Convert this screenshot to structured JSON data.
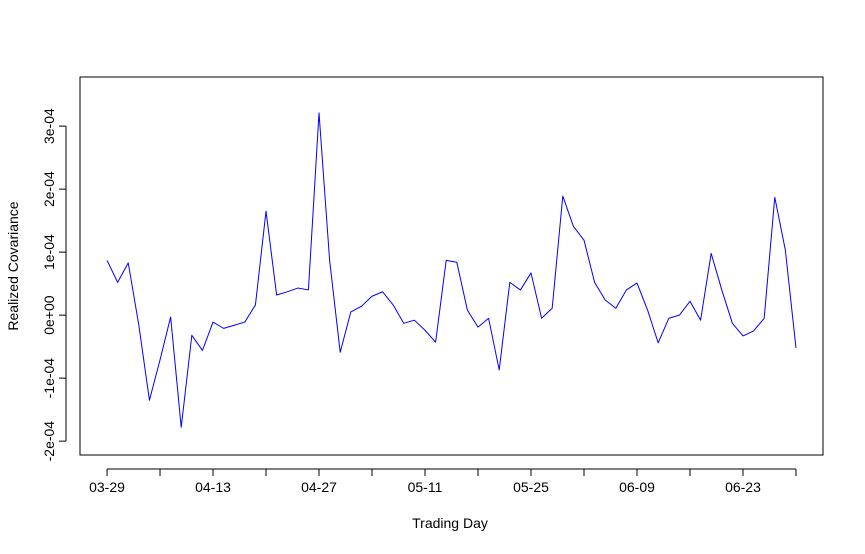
{
  "chart_data": {
    "type": "line",
    "x_label": "Trading Day",
    "y_label": "Realized Covariance",
    "x": [
      0,
      1,
      2,
      3,
      4,
      5,
      6,
      7,
      8,
      9,
      10,
      11,
      12,
      13,
      14,
      15,
      16,
      17,
      18,
      19,
      20,
      21,
      22,
      23,
      24,
      25,
      26,
      27,
      28,
      29,
      30,
      31,
      32,
      33,
      34,
      35,
      36,
      37,
      38,
      39,
      40,
      41,
      42,
      43,
      44,
      45,
      46,
      47,
      48,
      49,
      50,
      51,
      52,
      53,
      54,
      55,
      56,
      57,
      58,
      59,
      60,
      61,
      62,
      63,
      64,
      65
    ],
    "series": [
      {
        "color": "#0000ff",
        "values": [
          8.7e-05,
          5.2e-05,
          8.3e-05,
          -1.6e-05,
          -0.000135,
          -7.1e-05,
          -3e-06,
          -0.000178,
          -3.2e-05,
          -5.6e-05,
          -1.1e-05,
          -2.1e-05,
          -1.6e-05,
          -1.1e-05,
          1.6e-05,
          0.000165,
          3.2e-05,
          3.7e-05,
          4.3e-05,
          4e-05,
          0.000321,
          8.7e-05,
          -5.9e-05,
          5e-06,
          1.4e-05,
          3e-05,
          3.7e-05,
          1.6e-05,
          -1.3e-05,
          -8e-06,
          -2.4e-05,
          -4.3e-05,
          8.7e-05,
          8.4e-05,
          8e-06,
          -1.9e-05,
          -5e-06,
          -8.7e-05,
          5.2e-05,
          4e-05,
          6.7e-05,
          -5e-06,
          1.1e-05,
          0.000189,
          0.000141,
          0.000119,
          5.2e-05,
          2.4e-05,
          1.1e-05,
          4e-05,
          5.1e-05,
          8e-06,
          -4.4e-05,
          -5e-06,
          0,
          2.2e-05,
          -8e-06,
          9.8e-05,
          4e-05,
          -1.3e-05,
          -3.3e-05,
          -2.5e-05,
          -5e-06,
          0.000187,
          0.000103,
          -5.2e-05
        ]
      }
    ],
    "xlim": [
      -2.55,
      67.55
    ],
    "ylim": [
      -0.000222,
      0.000378
    ],
    "xticks": [
      {
        "value": 0,
        "label": "03-29"
      },
      {
        "value": 10,
        "label": "04-13"
      },
      {
        "value": 20,
        "label": "04-27"
      },
      {
        "value": 30,
        "label": "05-11"
      },
      {
        "value": 40,
        "label": "05-25"
      },
      {
        "value": 50,
        "label": "06-09"
      },
      {
        "value": 60,
        "label": "06-23"
      }
    ],
    "xminor_ticks": [
      5,
      15,
      25,
      35,
      45,
      55,
      65
    ],
    "yticks": [
      {
        "value": -0.0002,
        "label": "-2e-04"
      },
      {
        "value": -0.0001,
        "label": "-1e-04"
      },
      {
        "value": 0,
        "label": "0e+00"
      },
      {
        "value": 0.0001,
        "label": "1e-04"
      },
      {
        "value": 0.0002,
        "label": "2e-04"
      },
      {
        "value": 0.0003,
        "label": "3e-04"
      }
    ]
  }
}
